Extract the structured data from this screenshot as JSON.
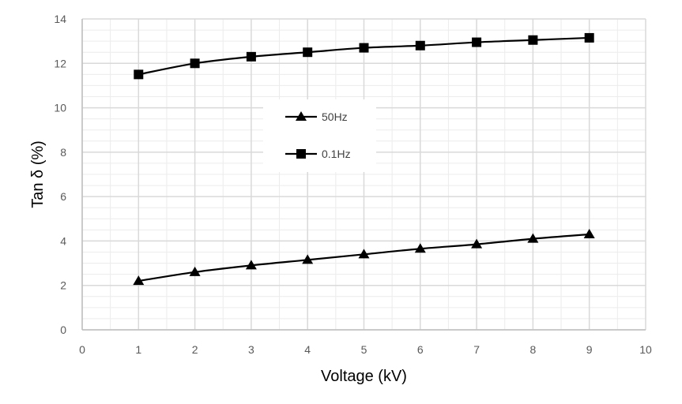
{
  "chart_data": {
    "type": "line",
    "title": "",
    "xlabel": "Voltage (kV)",
    "ylabel": "Tan δ (%)",
    "xlim": [
      0,
      10
    ],
    "ylim": [
      0,
      14
    ],
    "x_ticks": [
      "0",
      "1",
      "2",
      "3",
      "4",
      "5",
      "6",
      "7",
      "8",
      "9",
      "10"
    ],
    "y_ticks": [
      "0",
      "2",
      "4",
      "6",
      "8",
      "10",
      "12",
      "14"
    ],
    "x_minor_step": 0.5,
    "y_minor_step": 0.5,
    "grid": "major and minor",
    "legend_position": "upper-middle",
    "x": [
      1,
      2,
      3,
      4,
      5,
      6,
      7,
      8,
      9
    ],
    "series": [
      {
        "name": "50Hz",
        "marker": "triangle",
        "color": "#000000",
        "values": [
          2.2,
          2.6,
          2.9,
          3.15,
          3.4,
          3.65,
          3.85,
          4.1,
          4.3
        ]
      },
      {
        "name": "0.1Hz",
        "marker": "square",
        "color": "#000000",
        "values": [
          11.5,
          12.0,
          12.3,
          12.5,
          12.7,
          12.8,
          12.95,
          13.05,
          13.15
        ]
      }
    ],
    "colors": {
      "major_grid": "#d9d9d9",
      "minor_grid": "#ececec",
      "tick_label": "#595959",
      "series": "#000000"
    }
  }
}
